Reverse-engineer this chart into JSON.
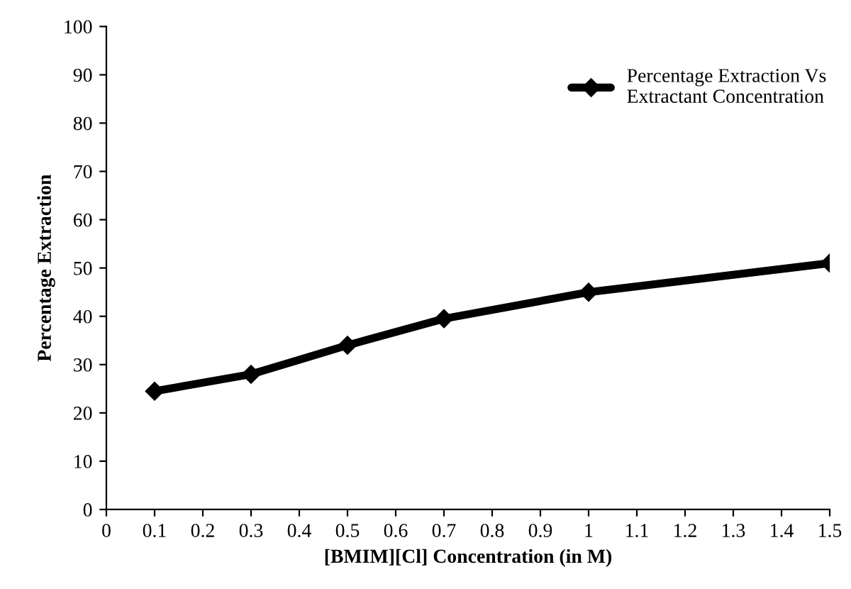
{
  "chart_data": {
    "type": "line",
    "xlabel": "[BMIM][Cl] Concentration (in M)",
    "ylabel": "Percentage Extraction",
    "x": [
      0.1,
      0.3,
      0.5,
      0.7,
      1,
      1.5
    ],
    "series": [
      {
        "name": "Percentage Extraction Vs\nExtractant Concentration",
        "color": "#000000",
        "values": [
          24.5,
          28,
          34,
          39.5,
          45,
          51
        ]
      }
    ],
    "xlim": [
      0,
      1.5
    ],
    "xticks": [
      0,
      0.1,
      0.2,
      0.3,
      0.4,
      0.5,
      0.6,
      0.7,
      0.8,
      0.9,
      1,
      1.1,
      1.2,
      1.3,
      1.4,
      1.5
    ],
    "ylim": [
      0,
      100
    ],
    "yticks": [
      0,
      10,
      20,
      30,
      40,
      50,
      60,
      70,
      80,
      90,
      100
    ],
    "grid": false,
    "legend": "top right",
    "marker": "diamond",
    "line_style": "solid"
  }
}
